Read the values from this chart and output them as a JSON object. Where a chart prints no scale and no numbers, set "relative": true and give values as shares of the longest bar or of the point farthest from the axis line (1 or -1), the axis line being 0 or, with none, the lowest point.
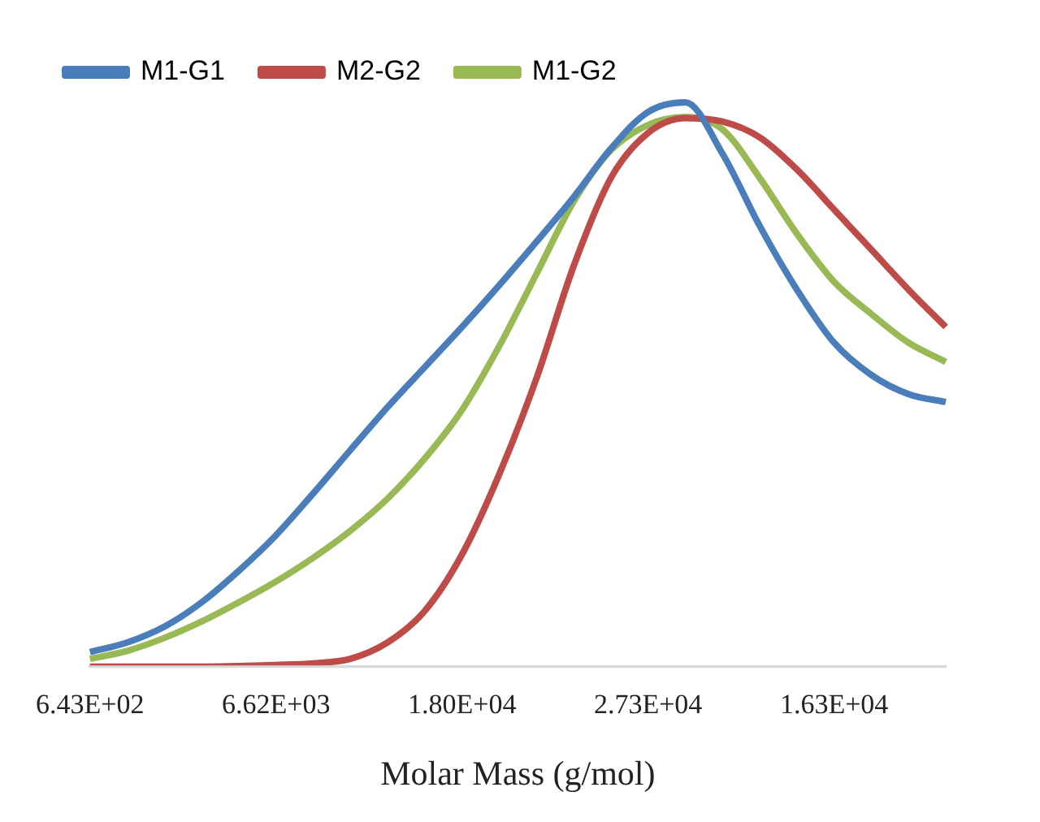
{
  "chart_data": {
    "type": "line",
    "relative": true,
    "xlabel": "Molar Mass (g/mol)",
    "legend": "top left",
    "marker": "none",
    "grid": false,
    "categories": [
      "6.43E+02",
      null,
      null,
      null,
      null,
      "6.62E+03",
      null,
      null,
      null,
      null,
      "1.80E+04",
      null,
      null,
      null,
      null,
      "2.73E+04",
      null,
      null,
      null,
      null,
      "1.63E+04",
      null,
      null,
      null
    ],
    "series": [
      {
        "name": "M1-G1",
        "color": "#4a7ebb",
        "values": [
          0.026,
          0.043,
          0.071,
          0.114,
          0.17,
          0.233,
          0.307,
          0.384,
          0.46,
          0.531,
          0.602,
          0.676,
          0.753,
          0.832,
          0.918,
          0.983,
          1,
          0.909,
          0.781,
          0.668,
          0.574,
          0.517,
          0.483,
          0.469
        ]
      },
      {
        "name": "M2-G2",
        "color": "#be4b48",
        "values": [
          0,
          0,
          0,
          0,
          0.001,
          0.003,
          0.006,
          0.014,
          0.043,
          0.099,
          0.199,
          0.341,
          0.511,
          0.71,
          0.866,
          0.946,
          0.972,
          0.966,
          0.938,
          0.881,
          0.81,
          0.739,
          0.668,
          0.602
        ]
      },
      {
        "name": "M1-G2",
        "color": "#98b954",
        "values": [
          0.014,
          0.028,
          0.051,
          0.08,
          0.114,
          0.151,
          0.193,
          0.241,
          0.298,
          0.369,
          0.455,
          0.568,
          0.696,
          0.824,
          0.915,
          0.96,
          0.974,
          0.952,
          0.866,
          0.767,
          0.682,
          0.625,
          0.574,
          0.54
        ]
      }
    ]
  }
}
